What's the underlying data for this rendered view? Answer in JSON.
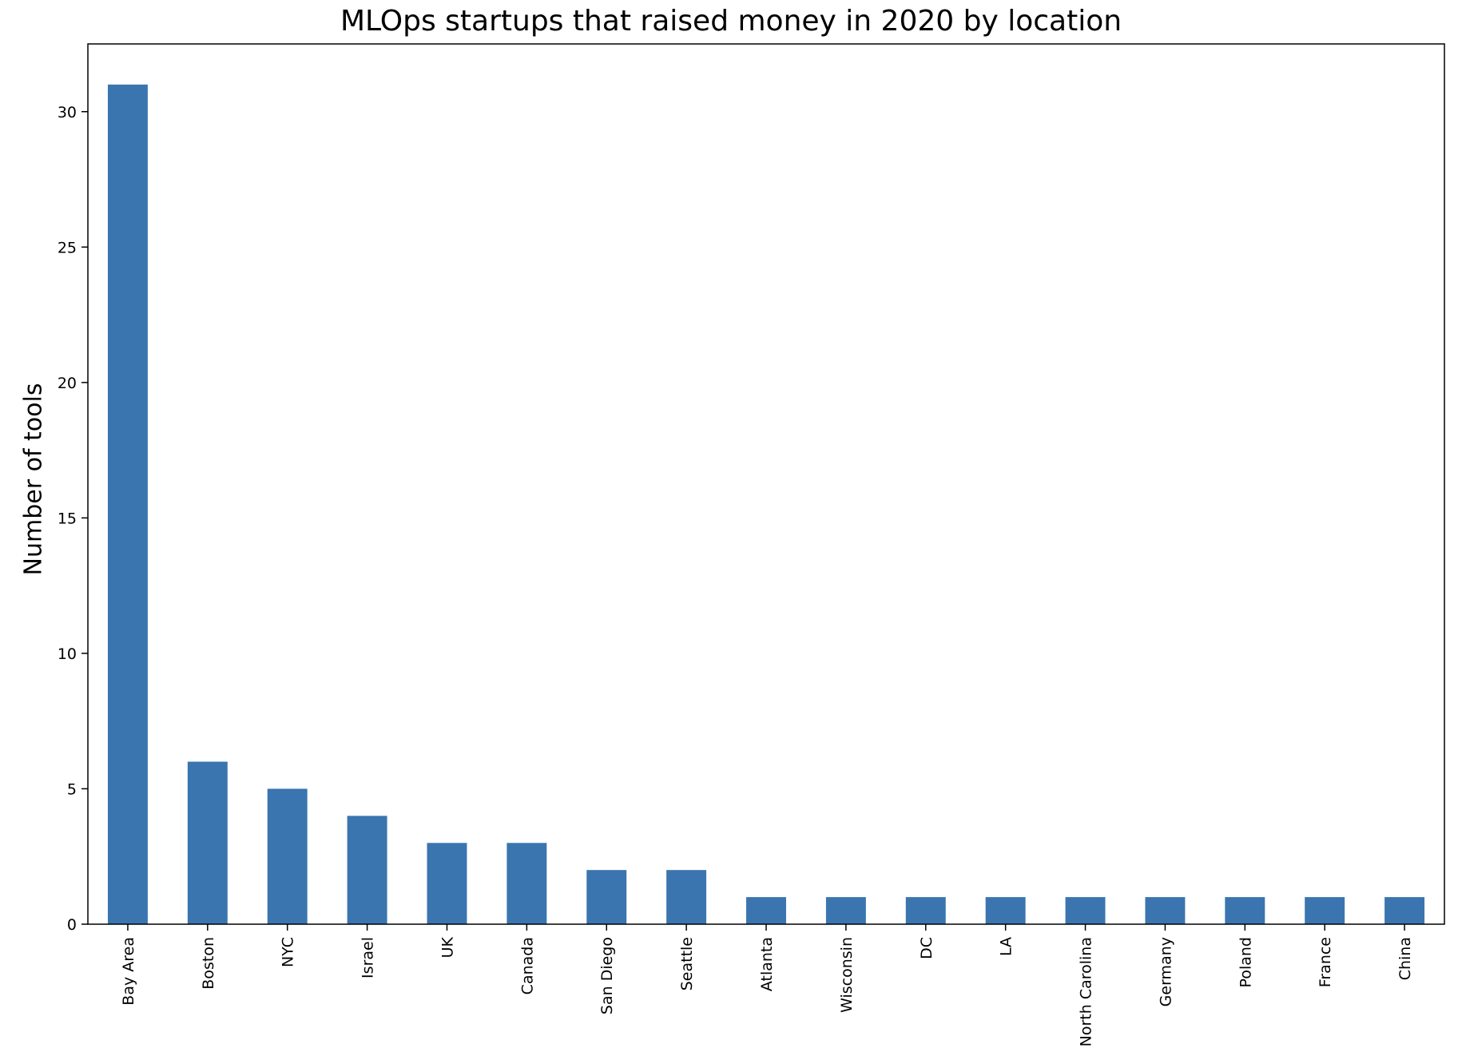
{
  "chart_data": {
    "type": "bar",
    "title": "MLOps startups that raised money in 2020 by location",
    "xlabel": "",
    "ylabel": "Number of tools",
    "categories": [
      "Bay Area",
      "Boston",
      "NYC",
      "Israel",
      "UK",
      "Canada",
      "San Diego",
      "Seattle",
      "Atlanta",
      "Wisconsin",
      "DC",
      "LA",
      "North Carolina",
      "Germany",
      "Poland",
      "France",
      "China"
    ],
    "values": [
      31,
      6,
      5,
      4,
      3,
      3,
      2,
      2,
      1,
      1,
      1,
      1,
      1,
      1,
      1,
      1,
      1
    ],
    "ylim": [
      0,
      32.5
    ],
    "yticks": [
      0,
      5,
      10,
      15,
      20,
      25,
      30
    ],
    "grid": false,
    "legend": "none",
    "bar_color": "#3a75af"
  }
}
